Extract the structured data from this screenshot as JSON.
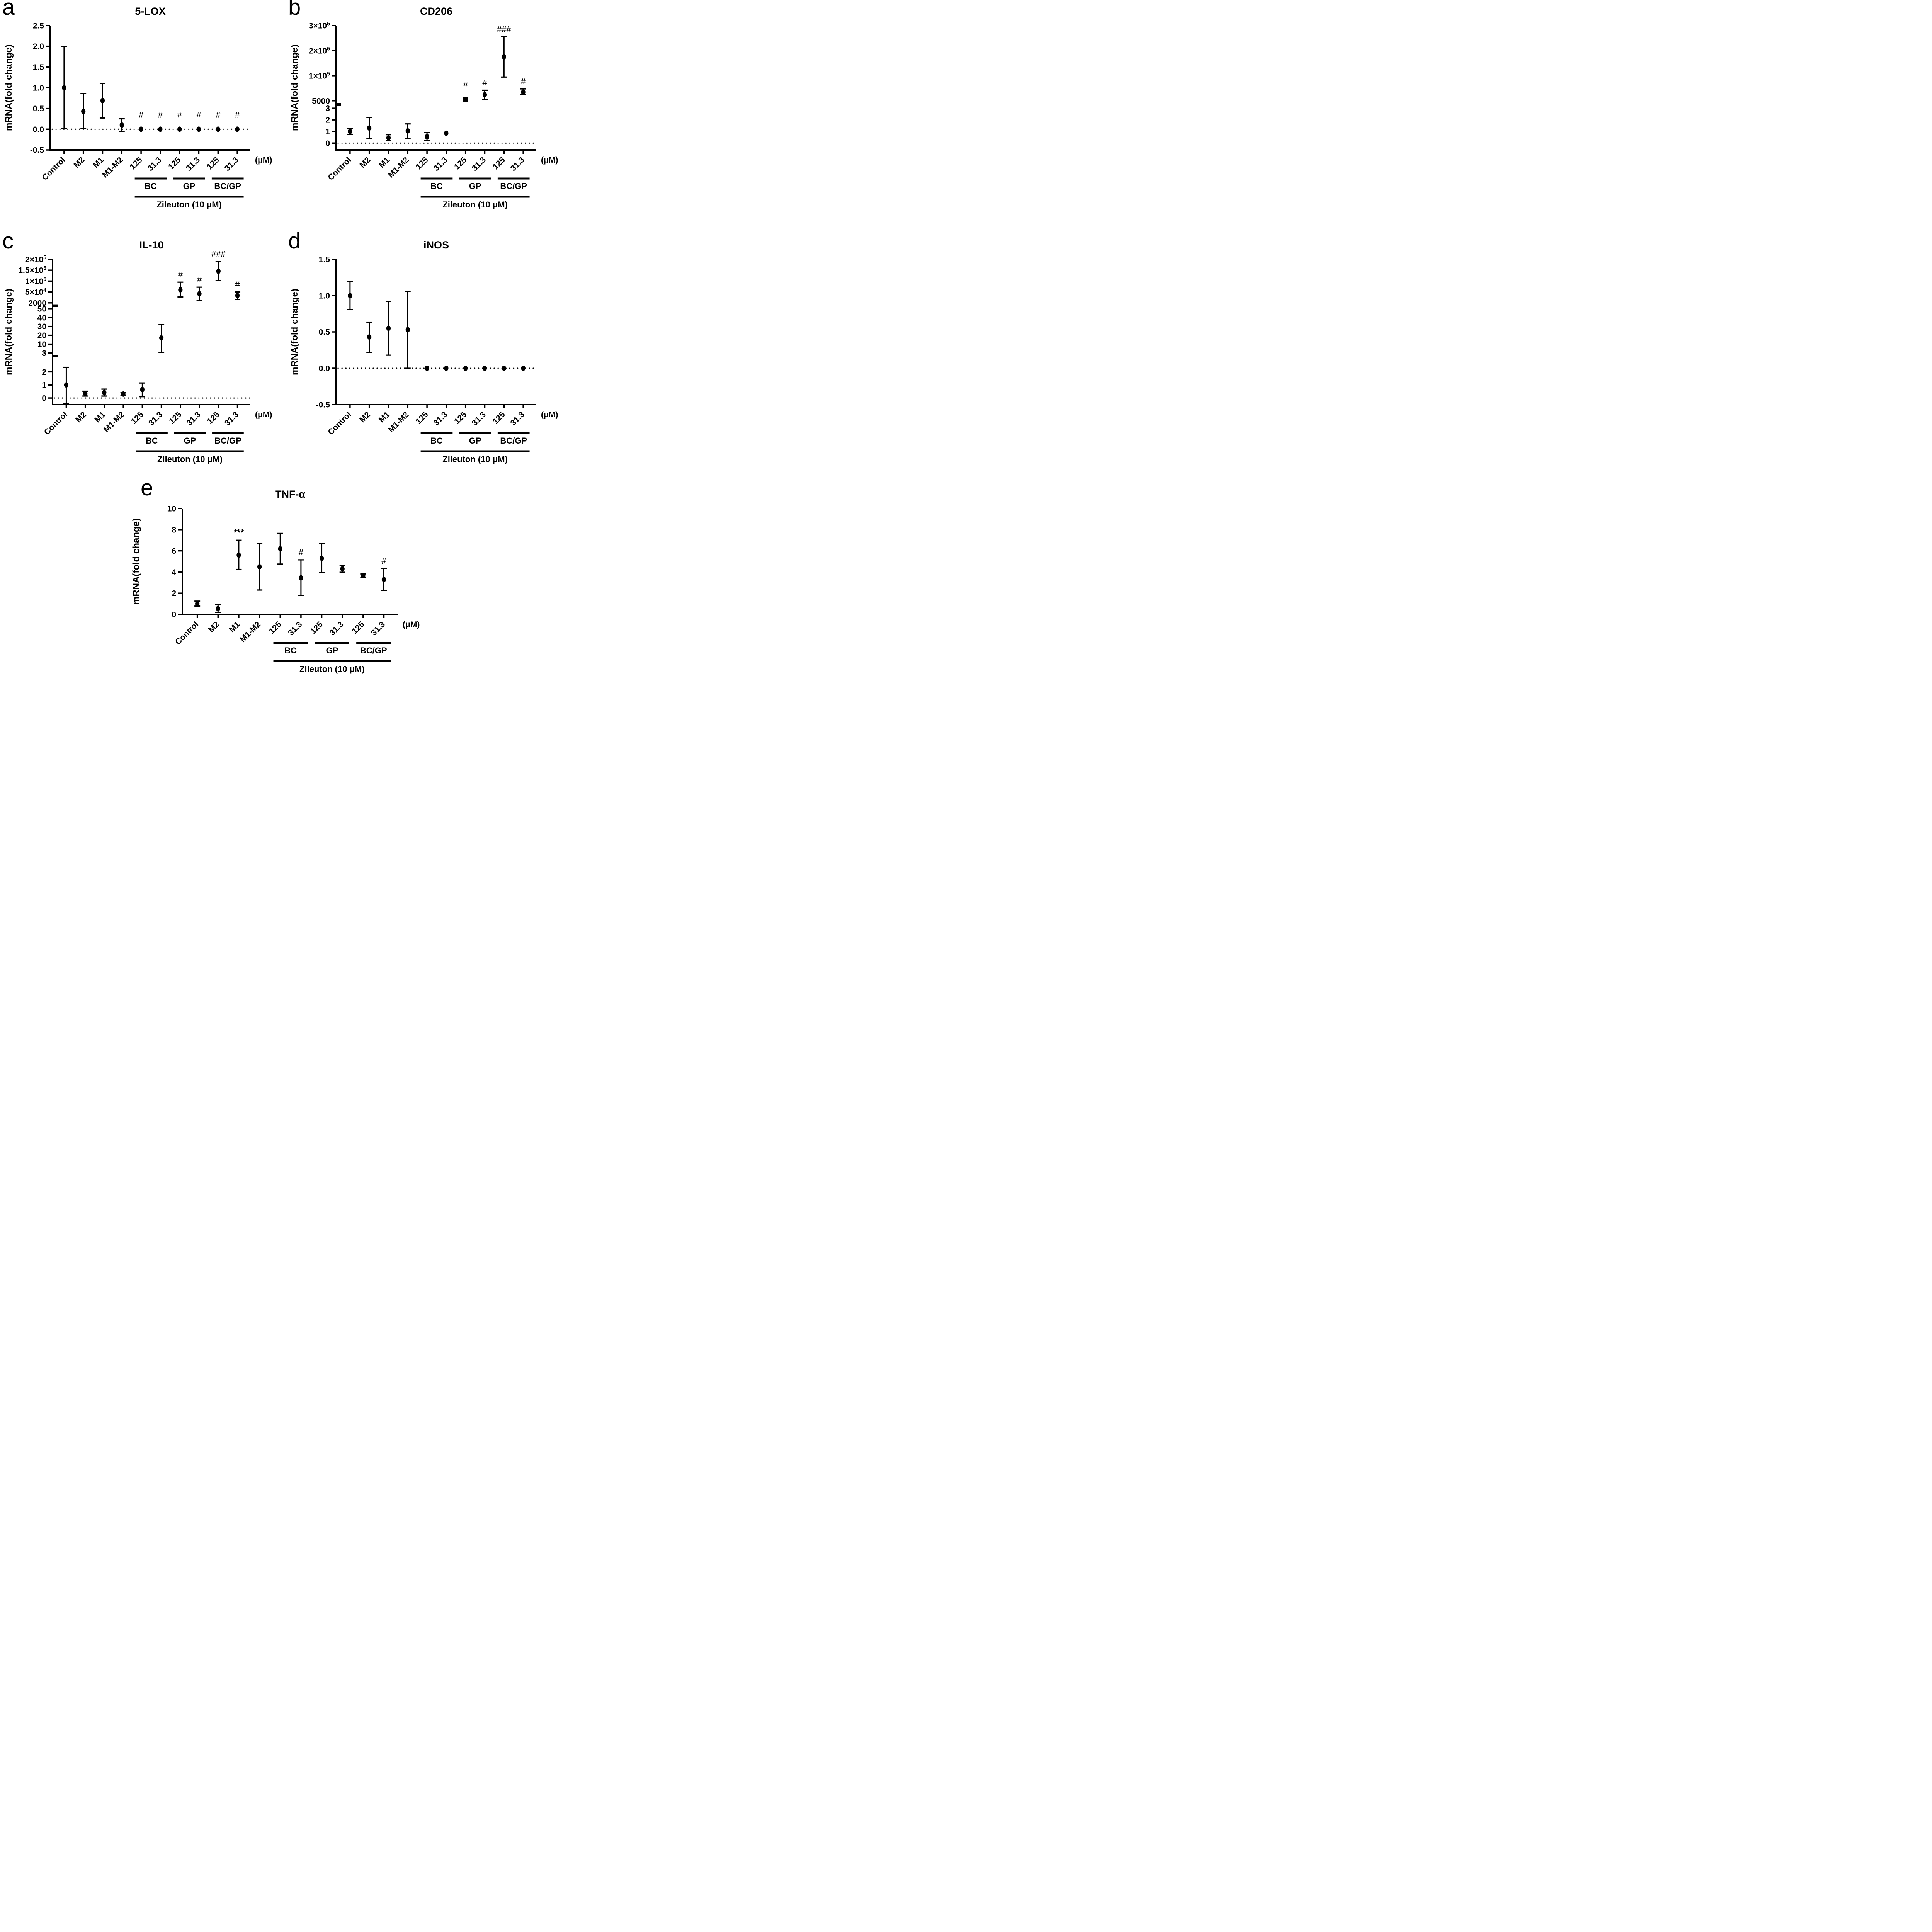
{
  "figure": {
    "type": "multi-panel-scatter-errorbar-figure",
    "panel_count": 5,
    "colors": {
      "foreground": "#000000",
      "background": "#ffffff"
    }
  },
  "chart_data": [
    {
      "type": "scatter",
      "letter": "a",
      "title": "5-LOX",
      "ylabel": "mRNA(fold change)",
      "unit_label": "(μM)",
      "zero_line": true,
      "categories": [
        "Control",
        "M2",
        "M1",
        "M1-M2",
        "125",
        "31.3",
        "125",
        "31.3",
        "125",
        "31.3"
      ],
      "groups": [
        {
          "label": "BC",
          "from": 4,
          "to": 5
        },
        {
          "label": "GP",
          "from": 6,
          "to": 7
        },
        {
          "label": "BC/GP",
          "from": 8,
          "to": 9
        }
      ],
      "group_footer": {
        "label": "Zileuton (10 μM)",
        "from": 4,
        "to": 9
      },
      "segments": [
        {
          "frac": 1,
          "extend_below_frac": 0,
          "anchors": [
            -0.5,
            0,
            0.5,
            1.0,
            1.5,
            2.0,
            2.5
          ],
          "ticks": [
            [
              "-0.5",
              -0.5
            ],
            [
              "0.0",
              0
            ],
            [
              "0.5",
              0.5
            ],
            [
              "1.0",
              1.0
            ],
            [
              "1.5",
              1.5
            ],
            [
              "2.0",
              2.0
            ],
            [
              "2.5",
              2.5
            ]
          ]
        }
      ],
      "points": [
        {
          "v": 1.0,
          "lo": 0.02,
          "hi": 2.0
        },
        {
          "v": 0.43,
          "lo": 0.01,
          "hi": 0.86
        },
        {
          "v": 0.69,
          "lo": 0.27,
          "hi": 1.1
        },
        {
          "v": 0.1,
          "lo": -0.05,
          "hi": 0.25
        },
        {
          "v": 0,
          "ann": "#"
        },
        {
          "v": 0,
          "ann": "#"
        },
        {
          "v": 0,
          "ann": "#"
        },
        {
          "v": 0,
          "ann": "#"
        },
        {
          "v": 0,
          "ann": "#"
        },
        {
          "v": 0,
          "ann": "#"
        }
      ]
    },
    {
      "type": "scatter",
      "letter": "b",
      "title": "CD206",
      "ylabel": "mRNA(fold change)",
      "unit_label": "(μM)",
      "zero_line": true,
      "categories": [
        "Control",
        "M2",
        "M1",
        "M1-M2",
        "125",
        "31.3",
        "125",
        "31.3",
        "125",
        "31.3"
      ],
      "groups": [
        {
          "label": "BC",
          "from": 4,
          "to": 5
        },
        {
          "label": "GP",
          "from": 6,
          "to": 7
        },
        {
          "label": "BC/GP",
          "from": 8,
          "to": 9
        }
      ],
      "group_footer": {
        "label": "Zileuton (10 μM)",
        "from": 4,
        "to": 9
      },
      "segments": [
        {
          "frac": 0.28,
          "extend_below_frac": 0.055,
          "gap_above": 0.06,
          "anchors": [
            0,
            1,
            2,
            3
          ],
          "ticks": [
            [
              "0",
              0
            ],
            [
              "1",
              1
            ],
            [
              "2",
              2
            ],
            [
              "3",
              3
            ]
          ]
        },
        {
          "frac": 0.605,
          "anchors": [
            5000,
            100000,
            200000,
            300000
          ],
          "ticks": [
            [
              "5000",
              5000
            ],
            [
              "1×10^5",
              100000
            ],
            [
              "2×10^5",
              200000
            ],
            [
              "3×10^5",
              300000
            ]
          ]
        }
      ],
      "points": [
        {
          "v": 1.0,
          "lo": 0.75,
          "hi": 1.28
        },
        {
          "v": 1.3,
          "lo": 0.38,
          "hi": 2.2
        },
        {
          "v": 0.45,
          "lo": 0.2,
          "hi": 0.72
        },
        {
          "v": 1.05,
          "lo": 0.38,
          "hi": 1.65
        },
        {
          "v": 0.55,
          "lo": 0.2,
          "hi": 0.92
        },
        {
          "v": 0.85
        },
        {
          "v": 10000,
          "marker": "square",
          "ann": "#"
        },
        {
          "v": 28000,
          "lo": 9000,
          "hi": 45000,
          "ann": "#"
        },
        {
          "v": 175000,
          "lo": 95000,
          "hi": 255000,
          "ann": "###"
        },
        {
          "v": 38000,
          "lo": 28000,
          "hi": 50000,
          "ann": "#"
        }
      ]
    },
    {
      "type": "scatter",
      "letter": "c",
      "title": "IL-10",
      "ylabel": "mRNA(fold change)",
      "unit_label": "(μM)",
      "zero_line": true,
      "categories": [
        "Control",
        "M2",
        "M1",
        "M1-M2",
        "125",
        "31.3",
        "125",
        "31.3",
        "125",
        "31.3"
      ],
      "groups": [
        {
          "label": "BC",
          "from": 4,
          "to": 5
        },
        {
          "label": "GP",
          "from": 6,
          "to": 7
        },
        {
          "label": "BC/GP",
          "from": 8,
          "to": 9
        }
      ],
      "group_footer": {
        "label": "Zileuton (10 μM)",
        "from": 4,
        "to": 9
      },
      "segments": [
        {
          "frac": 0.27,
          "extend_below_frac": 0.045,
          "gap_above": 0.04,
          "anchors": [
            0,
            1,
            2,
            3
          ],
          "ticks": [
            [
              "0",
              0
            ],
            [
              "1",
              1
            ],
            [
              "2",
              2
            ],
            [
              "3",
              3
            ]
          ]
        },
        {
          "frac": 0.305,
          "gap_above": 0.04,
          "anchors": [
            3,
            10,
            20,
            30,
            40,
            50
          ],
          "ticks": [
            [
              "3",
              3
            ],
            [
              "10",
              10
            ],
            [
              "20",
              20
            ],
            [
              "30",
              30
            ],
            [
              "40",
              40
            ],
            [
              "50",
              50
            ]
          ]
        },
        {
          "frac": 0.3,
          "anchors": [
            2000,
            50000,
            100000,
            150000,
            200000
          ],
          "ticks": [
            [
              "2000",
              2000
            ],
            [
              "5×10^4",
              50000
            ],
            [
              "1×10^5",
              100000
            ],
            [
              "1.5×10^5",
              150000
            ],
            [
              "2×10^5",
              200000
            ]
          ]
        }
      ],
      "points": [
        {
          "v": 1.0,
          "lo": -0.4,
          "hi": 2.35
        },
        {
          "v": 0.33,
          "lo": 0.15,
          "hi": 0.52
        },
        {
          "v": 0.42,
          "lo": 0.15,
          "hi": 0.68
        },
        {
          "v": 0.3,
          "lo": 0.18,
          "hi": 0.42
        },
        {
          "v": 0.65,
          "lo": 0.1,
          "hi": 1.15
        },
        {
          "v": 17,
          "lo": 3.5,
          "hi": 32
        },
        {
          "v": 60000,
          "lo": 28000,
          "hi": 95000,
          "ann": "#"
        },
        {
          "v": 42000,
          "lo": 12000,
          "hi": 72000,
          "ann": "#"
        },
        {
          "v": 145000,
          "lo": 103000,
          "hi": 190000,
          "ann": "###"
        },
        {
          "v": 34000,
          "lo": 17000,
          "hi": 50000,
          "ann": "#"
        }
      ]
    },
    {
      "type": "scatter",
      "letter": "d",
      "title": "iNOS",
      "ylabel": "mRNA(fold change)",
      "unit_label": "(μM)",
      "zero_line": true,
      "categories": [
        "Control",
        "M2",
        "M1",
        "M1-M2",
        "125",
        "31.3",
        "125",
        "31.3",
        "125",
        "31.3"
      ],
      "groups": [
        {
          "label": "BC",
          "from": 4,
          "to": 5
        },
        {
          "label": "GP",
          "from": 6,
          "to": 7
        },
        {
          "label": "BC/GP",
          "from": 8,
          "to": 9
        }
      ],
      "group_footer": {
        "label": "Zileuton (10 μM)",
        "from": 4,
        "to": 9
      },
      "segments": [
        {
          "frac": 1,
          "extend_below_frac": 0,
          "anchors": [
            -0.5,
            0,
            0.5,
            1.0,
            1.5
          ],
          "ticks": [
            [
              "-0.5",
              -0.5
            ],
            [
              "0.0",
              0
            ],
            [
              "0.5",
              0.5
            ],
            [
              "1.0",
              1.0
            ],
            [
              "1.5",
              1.5
            ]
          ]
        }
      ],
      "points": [
        {
          "v": 1.0,
          "lo": 0.81,
          "hi": 1.19
        },
        {
          "v": 0.43,
          "lo": 0.22,
          "hi": 0.63
        },
        {
          "v": 0.55,
          "lo": 0.18,
          "hi": 0.92
        },
        {
          "v": 0.53,
          "lo": 0.0,
          "hi": 1.06
        },
        {
          "v": 0
        },
        {
          "v": 0
        },
        {
          "v": 0
        },
        {
          "v": 0
        },
        {
          "v": 0
        },
        {
          "v": 0
        }
      ]
    },
    {
      "type": "scatter",
      "letter": "e",
      "title": "TNF-α",
      "ylabel": "mRNA(fold change)",
      "unit_label": "(μM)",
      "zero_line": false,
      "categories": [
        "Control",
        "M2",
        "M1",
        "M1-M2",
        "125",
        "31.3",
        "125",
        "31.3",
        "125",
        "31.3"
      ],
      "groups": [
        {
          "label": "BC",
          "from": 4,
          "to": 5
        },
        {
          "label": "GP",
          "from": 6,
          "to": 7
        },
        {
          "label": "BC/GP",
          "from": 8,
          "to": 9
        }
      ],
      "group_footer": {
        "label": "Zileuton (10 μM)",
        "from": 4,
        "to": 9
      },
      "segments": [
        {
          "frac": 1,
          "extend_below_frac": 0,
          "anchors": [
            0,
            2,
            4,
            6,
            8,
            10
          ],
          "ticks": [
            [
              "0",
              0
            ],
            [
              "2",
              2
            ],
            [
              "4",
              4
            ],
            [
              "6",
              6
            ],
            [
              "8",
              8
            ],
            [
              "10",
              10
            ]
          ]
        }
      ],
      "points": [
        {
          "v": 1.0,
          "lo": 0.78,
          "hi": 1.25
        },
        {
          "v": 0.55,
          "lo": 0.18,
          "hi": 0.9
        },
        {
          "v": 5.6,
          "lo": 4.25,
          "hi": 7.0,
          "ann": "***"
        },
        {
          "v": 4.5,
          "lo": 2.3,
          "hi": 6.7
        },
        {
          "v": 6.2,
          "lo": 4.75,
          "hi": 7.65
        },
        {
          "v": 3.45,
          "lo": 1.78,
          "hi": 5.15,
          "ann": "#"
        },
        {
          "v": 5.3,
          "lo": 3.95,
          "hi": 6.7
        },
        {
          "v": 4.3,
          "lo": 3.98,
          "hi": 4.6
        },
        {
          "v": 3.65,
          "lo": 3.5,
          "hi": 3.82
        },
        {
          "v": 3.3,
          "lo": 2.25,
          "hi": 4.35,
          "ann": "#"
        }
      ]
    }
  ]
}
